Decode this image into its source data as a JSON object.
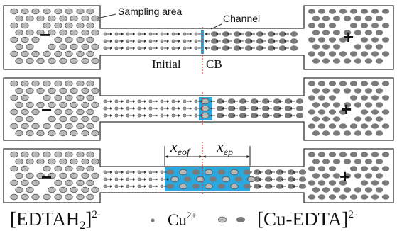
{
  "labels": {
    "sampling_area": "Sampling area",
    "channel": "Channel",
    "initial": "Initial",
    "cb": "CB",
    "minus": "−",
    "plus": "+",
    "x_eof_main": "x",
    "x_eof_sub": "eof",
    "x_ep_main": "x",
    "x_ep_sub": "ep"
  },
  "legend": {
    "edtah2_open": "[EDTAH",
    "edtah2_sub": "2",
    "edtah2_close": "]",
    "edtah2_charge": "2-",
    "cu": "Cu",
    "cu_charge": "2+",
    "cuedta": "[Cu-EDTA]",
    "cuedta_charge": "2-"
  },
  "colors": {
    "particle_fill": "#b9b9b9",
    "particle_dark": "#7a7a7a",
    "particle_stroke": "#555555",
    "zone": "#29a9e0",
    "boundary": "#e03030",
    "outline": "#333333"
  },
  "panels": [
    {
      "stage": "initial",
      "zone": "line"
    },
    {
      "stage": "stacking",
      "zone": "narrow"
    },
    {
      "stage": "migration",
      "zone": "wide"
    }
  ]
}
